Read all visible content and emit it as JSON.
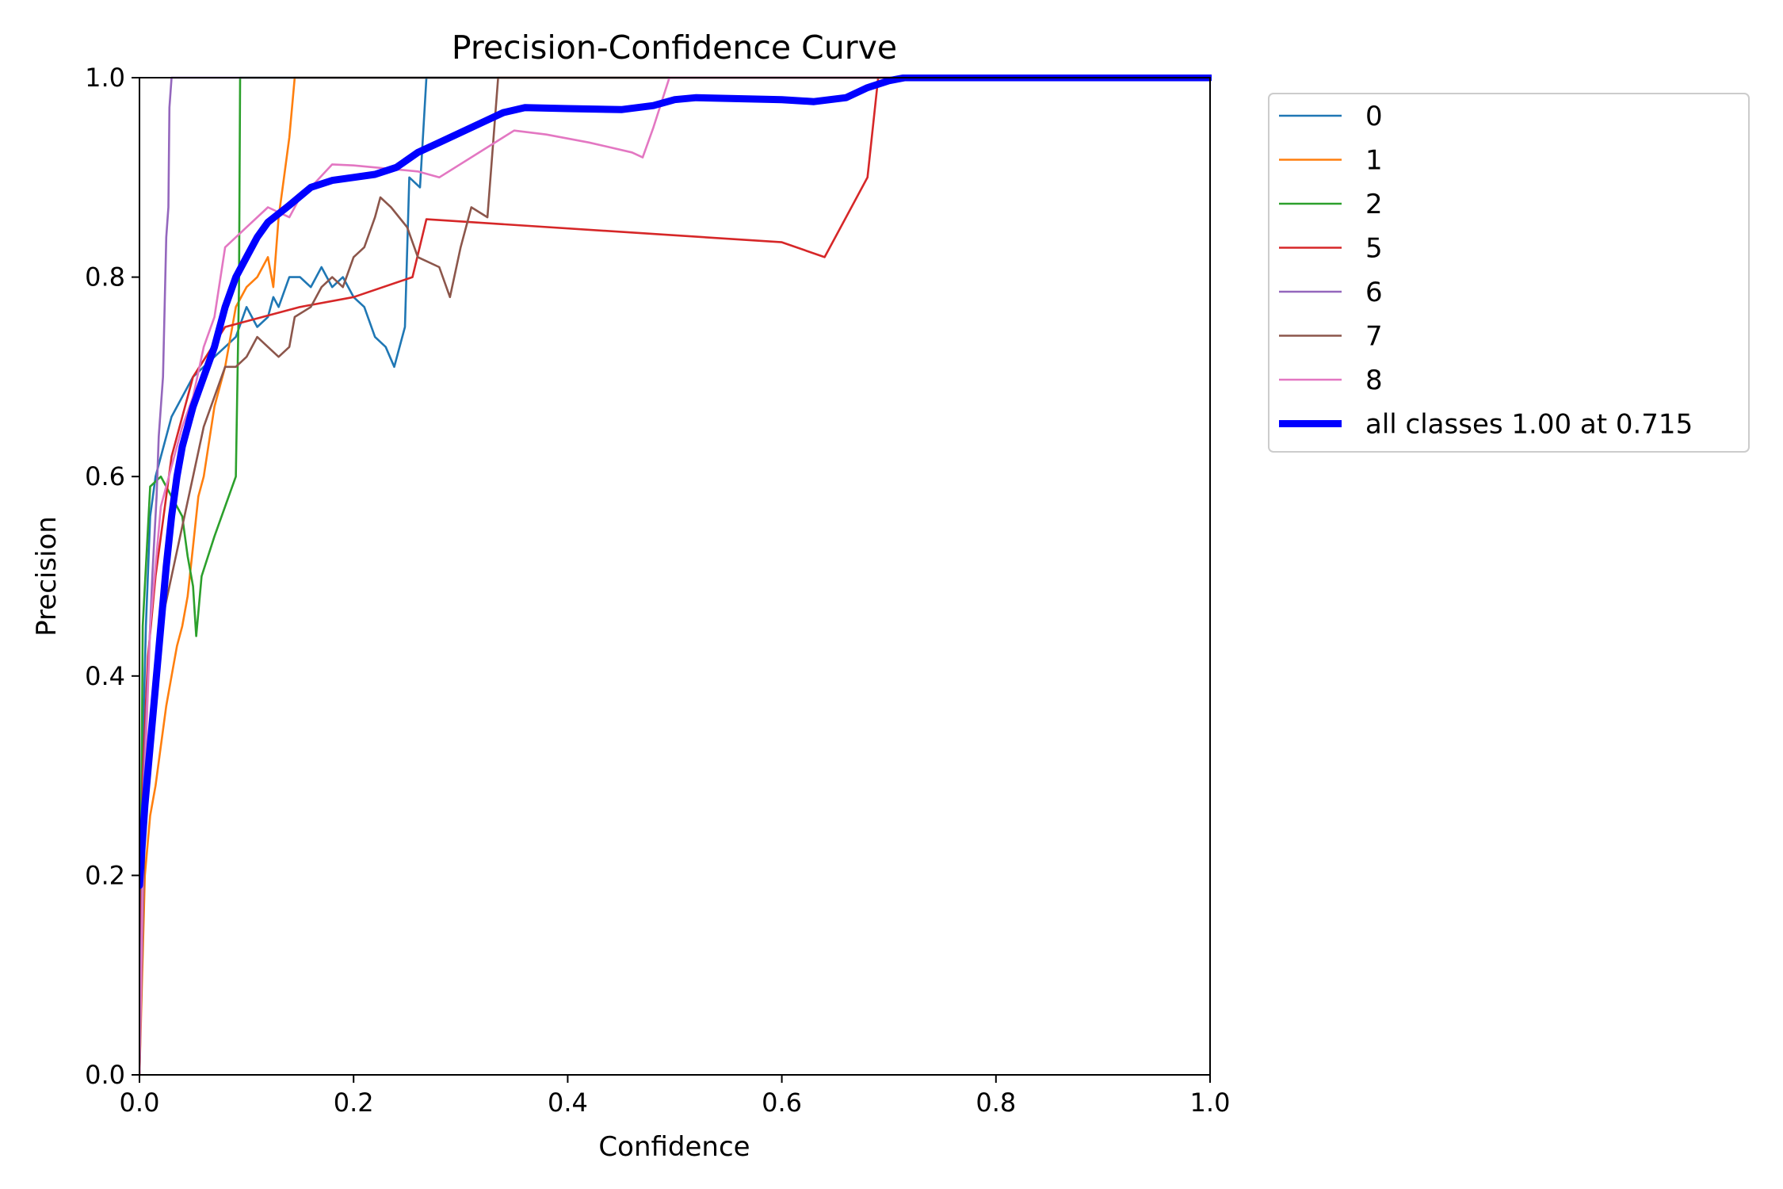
{
  "chart_data": {
    "type": "line",
    "title": "Precision-Confidence Curve",
    "xlabel": "Confidence",
    "ylabel": "Precision",
    "xlim": [
      0,
      1
    ],
    "ylim": [
      0,
      1
    ],
    "xticks": [
      0.0,
      0.2,
      0.4,
      0.6,
      0.8,
      1.0
    ],
    "yticks": [
      0.0,
      0.2,
      0.4,
      0.6,
      0.8,
      1.0
    ],
    "xtick_labels": [
      "0.0",
      "0.2",
      "0.4",
      "0.6",
      "0.8",
      "1.0"
    ],
    "ytick_labels": [
      "0.0",
      "0.2",
      "0.4",
      "0.6",
      "0.8",
      "1.0"
    ],
    "grid": false,
    "legend": "outside-upper-right",
    "series": [
      {
        "name": "0",
        "color": "#1f77b4",
        "points": [
          [
            0.0,
            0.0
          ],
          [
            0.003,
            0.32
          ],
          [
            0.006,
            0.45
          ],
          [
            0.01,
            0.56
          ],
          [
            0.015,
            0.6
          ],
          [
            0.02,
            0.62
          ],
          [
            0.03,
            0.66
          ],
          [
            0.04,
            0.68
          ],
          [
            0.05,
            0.7
          ],
          [
            0.06,
            0.71
          ],
          [
            0.07,
            0.72
          ],
          [
            0.08,
            0.73
          ],
          [
            0.09,
            0.74
          ],
          [
            0.1,
            0.77
          ],
          [
            0.11,
            0.75
          ],
          [
            0.12,
            0.76
          ],
          [
            0.125,
            0.78
          ],
          [
            0.13,
            0.77
          ],
          [
            0.14,
            0.8
          ],
          [
            0.15,
            0.8
          ],
          [
            0.16,
            0.79
          ],
          [
            0.17,
            0.81
          ],
          [
            0.18,
            0.79
          ],
          [
            0.19,
            0.8
          ],
          [
            0.2,
            0.78
          ],
          [
            0.21,
            0.77
          ],
          [
            0.22,
            0.74
          ],
          [
            0.23,
            0.73
          ],
          [
            0.238,
            0.71
          ],
          [
            0.248,
            0.75
          ],
          [
            0.252,
            0.9
          ],
          [
            0.262,
            0.89
          ],
          [
            0.268,
            1.0
          ],
          [
            1.0,
            1.0
          ]
        ]
      },
      {
        "name": "1",
        "color": "#ff7f0e",
        "points": [
          [
            0.0,
            0.0
          ],
          [
            0.005,
            0.2
          ],
          [
            0.01,
            0.26
          ],
          [
            0.015,
            0.29
          ],
          [
            0.02,
            0.33
          ],
          [
            0.025,
            0.37
          ],
          [
            0.03,
            0.4
          ],
          [
            0.035,
            0.43
          ],
          [
            0.04,
            0.45
          ],
          [
            0.045,
            0.48
          ],
          [
            0.05,
            0.53
          ],
          [
            0.055,
            0.58
          ],
          [
            0.06,
            0.6
          ],
          [
            0.07,
            0.67
          ],
          [
            0.08,
            0.71
          ],
          [
            0.09,
            0.77
          ],
          [
            0.1,
            0.79
          ],
          [
            0.11,
            0.8
          ],
          [
            0.12,
            0.82
          ],
          [
            0.125,
            0.79
          ],
          [
            0.13,
            0.86
          ],
          [
            0.135,
            0.9
          ],
          [
            0.14,
            0.94
          ],
          [
            0.145,
            1.0
          ],
          [
            1.0,
            1.0
          ]
        ]
      },
      {
        "name": "2",
        "color": "#2ca02c",
        "points": [
          [
            0.0,
            0.0
          ],
          [
            0.003,
            0.45
          ],
          [
            0.01,
            0.59
          ],
          [
            0.02,
            0.6
          ],
          [
            0.03,
            0.58
          ],
          [
            0.04,
            0.56
          ],
          [
            0.045,
            0.52
          ],
          [
            0.05,
            0.49
          ],
          [
            0.053,
            0.44
          ],
          [
            0.058,
            0.5
          ],
          [
            0.07,
            0.54
          ],
          [
            0.08,
            0.57
          ],
          [
            0.09,
            0.6
          ],
          [
            0.093,
            0.79
          ],
          [
            0.094,
            1.0
          ],
          [
            1.0,
            1.0
          ]
        ]
      },
      {
        "name": "5",
        "color": "#d62728",
        "points": [
          [
            0.0,
            0.0
          ],
          [
            0.003,
            0.3
          ],
          [
            0.008,
            0.42
          ],
          [
            0.015,
            0.5
          ],
          [
            0.03,
            0.62
          ],
          [
            0.05,
            0.7
          ],
          [
            0.08,
            0.75
          ],
          [
            0.15,
            0.77
          ],
          [
            0.2,
            0.78
          ],
          [
            0.255,
            0.8
          ],
          [
            0.268,
            0.858
          ],
          [
            0.6,
            0.835
          ],
          [
            0.64,
            0.82
          ],
          [
            0.68,
            0.9
          ],
          [
            0.69,
            1.0
          ],
          [
            1.0,
            1.0
          ]
        ]
      },
      {
        "name": "6",
        "color": "#9467bd",
        "points": [
          [
            0.0,
            0.0
          ],
          [
            0.004,
            0.3
          ],
          [
            0.008,
            0.4
          ],
          [
            0.012,
            0.5
          ],
          [
            0.016,
            0.58
          ],
          [
            0.018,
            0.64
          ],
          [
            0.022,
            0.7
          ],
          [
            0.025,
            0.84
          ],
          [
            0.027,
            0.87
          ],
          [
            0.028,
            0.97
          ],
          [
            0.03,
            1.0
          ],
          [
            1.0,
            1.0
          ]
        ]
      },
      {
        "name": "7",
        "color": "#8c564b",
        "points": [
          [
            0.0,
            0.0
          ],
          [
            0.005,
            0.25
          ],
          [
            0.01,
            0.35
          ],
          [
            0.02,
            0.45
          ],
          [
            0.03,
            0.5
          ],
          [
            0.04,
            0.55
          ],
          [
            0.05,
            0.6
          ],
          [
            0.06,
            0.65
          ],
          [
            0.07,
            0.68
          ],
          [
            0.08,
            0.71
          ],
          [
            0.09,
            0.71
          ],
          [
            0.1,
            0.72
          ],
          [
            0.11,
            0.74
          ],
          [
            0.12,
            0.73
          ],
          [
            0.13,
            0.72
          ],
          [
            0.14,
            0.73
          ],
          [
            0.145,
            0.76
          ],
          [
            0.16,
            0.77
          ],
          [
            0.17,
            0.79
          ],
          [
            0.18,
            0.8
          ],
          [
            0.19,
            0.79
          ],
          [
            0.2,
            0.82
          ],
          [
            0.21,
            0.83
          ],
          [
            0.22,
            0.86
          ],
          [
            0.225,
            0.88
          ],
          [
            0.235,
            0.87
          ],
          [
            0.25,
            0.85
          ],
          [
            0.26,
            0.82
          ],
          [
            0.28,
            0.81
          ],
          [
            0.29,
            0.78
          ],
          [
            0.3,
            0.83
          ],
          [
            0.31,
            0.87
          ],
          [
            0.325,
            0.86
          ],
          [
            0.335,
            1.0
          ],
          [
            1.0,
            1.0
          ]
        ]
      },
      {
        "name": "8",
        "color": "#e377c2",
        "points": [
          [
            0.0,
            0.0
          ],
          [
            0.005,
            0.3
          ],
          [
            0.01,
            0.45
          ],
          [
            0.02,
            0.57
          ],
          [
            0.03,
            0.61
          ],
          [
            0.04,
            0.65
          ],
          [
            0.05,
            0.68
          ],
          [
            0.06,
            0.73
          ],
          [
            0.07,
            0.76
          ],
          [
            0.08,
            0.83
          ],
          [
            0.09,
            0.84
          ],
          [
            0.1,
            0.85
          ],
          [
            0.12,
            0.87
          ],
          [
            0.14,
            0.86
          ],
          [
            0.15,
            0.88
          ],
          [
            0.16,
            0.89
          ],
          [
            0.18,
            0.913
          ],
          [
            0.2,
            0.912
          ],
          [
            0.26,
            0.906
          ],
          [
            0.28,
            0.9
          ],
          [
            0.35,
            0.947
          ],
          [
            0.38,
            0.943
          ],
          [
            0.42,
            0.935
          ],
          [
            0.46,
            0.925
          ],
          [
            0.47,
            0.92
          ],
          [
            0.48,
            0.95
          ],
          [
            0.495,
            1.0
          ],
          [
            1.0,
            1.0
          ]
        ]
      },
      {
        "name": "all classes 1.00 at 0.715",
        "color": "#0000ff",
        "bold": true,
        "points": [
          [
            0.0,
            0.19
          ],
          [
            0.005,
            0.27
          ],
          [
            0.01,
            0.33
          ],
          [
            0.015,
            0.39
          ],
          [
            0.02,
            0.45
          ],
          [
            0.025,
            0.51
          ],
          [
            0.03,
            0.56
          ],
          [
            0.035,
            0.6
          ],
          [
            0.04,
            0.63
          ],
          [
            0.05,
            0.67
          ],
          [
            0.06,
            0.7
          ],
          [
            0.07,
            0.73
          ],
          [
            0.08,
            0.77
          ],
          [
            0.09,
            0.8
          ],
          [
            0.1,
            0.82
          ],
          [
            0.11,
            0.84
          ],
          [
            0.12,
            0.855
          ],
          [
            0.14,
            0.872
          ],
          [
            0.16,
            0.89
          ],
          [
            0.18,
            0.897
          ],
          [
            0.2,
            0.9
          ],
          [
            0.22,
            0.903
          ],
          [
            0.24,
            0.91
          ],
          [
            0.26,
            0.925
          ],
          [
            0.28,
            0.935
          ],
          [
            0.3,
            0.945
          ],
          [
            0.32,
            0.955
          ],
          [
            0.34,
            0.965
          ],
          [
            0.36,
            0.97
          ],
          [
            0.4,
            0.969
          ],
          [
            0.45,
            0.968
          ],
          [
            0.48,
            0.972
          ],
          [
            0.5,
            0.978
          ],
          [
            0.52,
            0.98
          ],
          [
            0.6,
            0.978
          ],
          [
            0.63,
            0.976
          ],
          [
            0.66,
            0.98
          ],
          [
            0.68,
            0.99
          ],
          [
            0.7,
            0.997
          ],
          [
            0.715,
            1.0
          ],
          [
            1.0,
            1.0
          ]
        ]
      }
    ]
  }
}
